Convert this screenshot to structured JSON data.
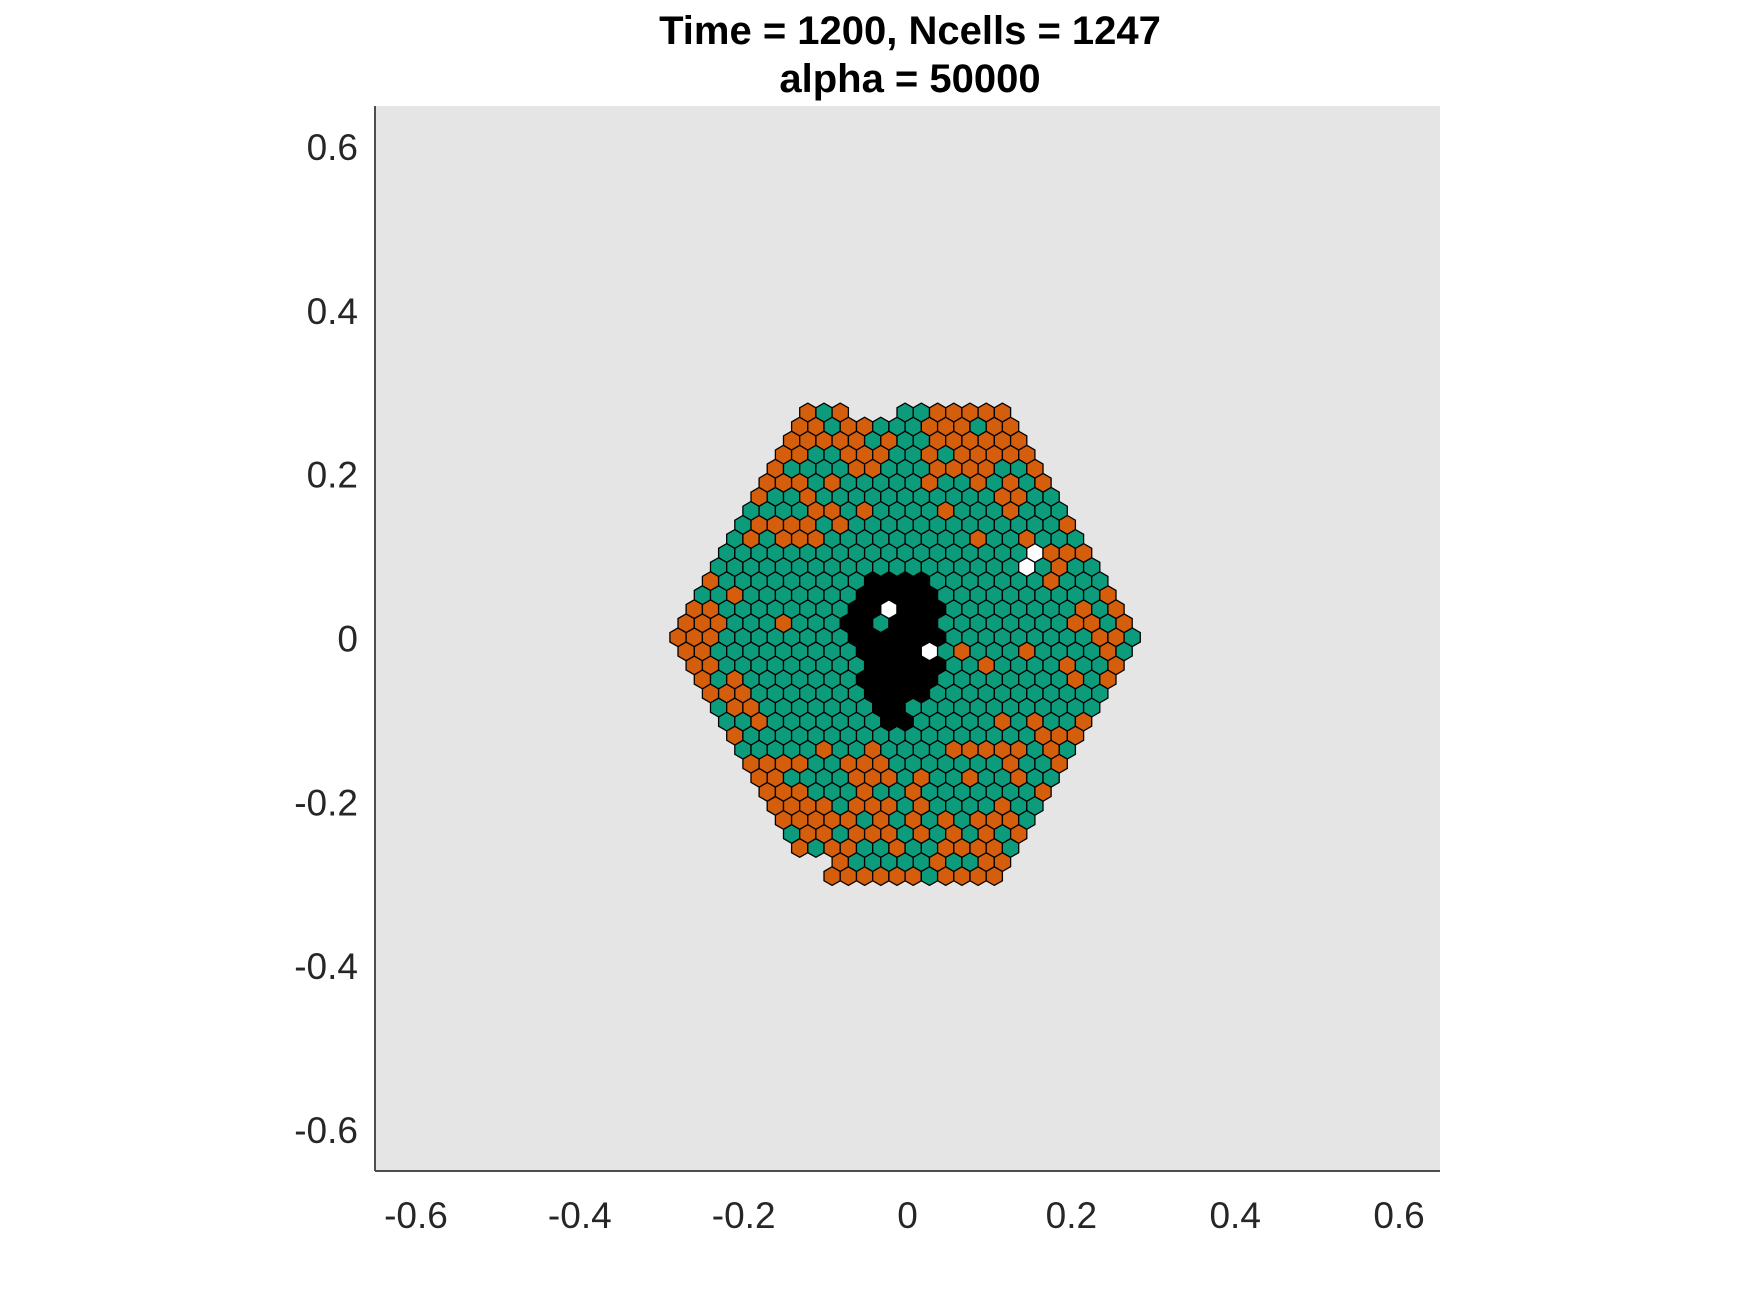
{
  "chart_data": {
    "type": "scatter",
    "title": "Time = 1200, Ncells = 1247",
    "subtitle": "alpha = 50000",
    "xlabel": "",
    "ylabel": "",
    "xlim": [
      -0.65,
      0.65
    ],
    "ylim": [
      -0.65,
      0.65
    ],
    "xticks": [
      "-0.6",
      "-0.4",
      "-0.2",
      "0",
      "0.2",
      "0.4",
      "0.6"
    ],
    "yticks": [
      "0.6",
      "0.4",
      "0.2",
      "0",
      "-0.2",
      "-0.4",
      "-0.6"
    ],
    "grid": false,
    "background_color": "#e5e5e5",
    "cell_colors": {
      "healthy": "#0c9c7c",
      "mutant": "#d55e0c",
      "dead": "#000000",
      "empty": "#ffffff"
    },
    "colony": {
      "cell_spacing": 0.0198,
      "x_range": [
        -0.29,
        0.28
      ],
      "y_range": [
        -0.29,
        0.29
      ],
      "ncells": 1247
    }
  }
}
